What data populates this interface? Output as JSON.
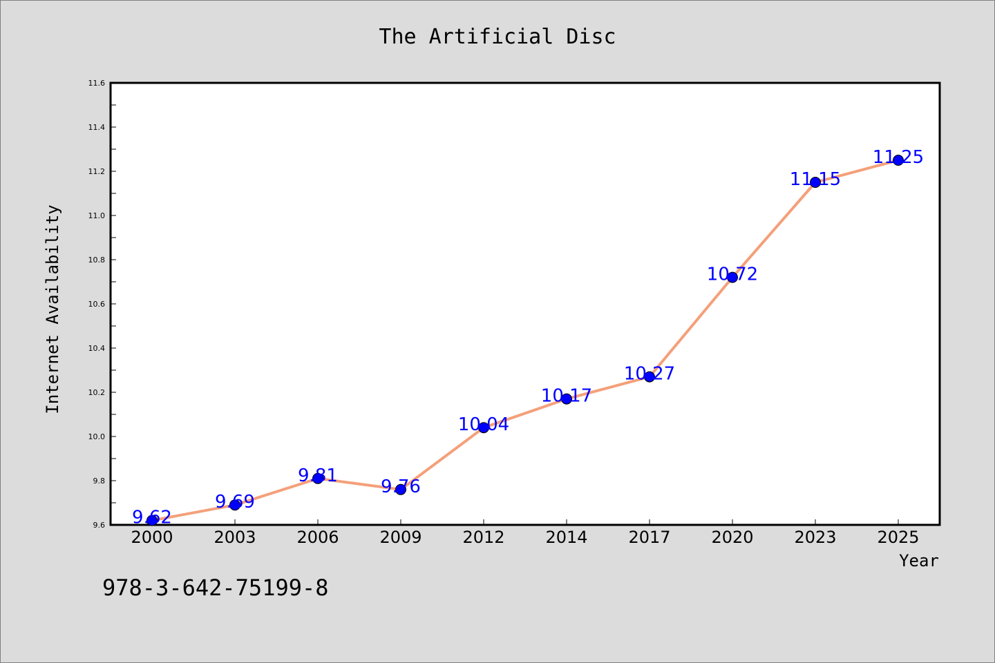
{
  "chart_data": {
    "type": "line",
    "title": "The Artificial Disc",
    "xlabel": "Year",
    "ylabel": "Internet Availability",
    "categories": [
      "2000",
      "2003",
      "2006",
      "2009",
      "2012",
      "2014",
      "2017",
      "2020",
      "2023",
      "2025"
    ],
    "series": [
      {
        "values": [
          9.62,
          9.69,
          9.81,
          9.76,
          10.04,
          10.17,
          10.27,
          10.72,
          11.15,
          11.25
        ]
      }
    ],
    "data_labels": [
      "9.62",
      "9.69",
      "9.81",
      "9.76",
      "10.04",
      "10.17",
      "10.27",
      "10.72",
      "11.15",
      "11.25"
    ],
    "ylim": [
      9.6,
      11.6
    ],
    "yticks": [
      "9.6",
      "9.8",
      "10.0",
      "10.2",
      "10.4",
      "10.6",
      "10.8",
      "11.0",
      "11.2",
      "11.4",
      "11.6"
    ],
    "grid": false,
    "legend": "none",
    "colors": {
      "line": "#f4a07a",
      "marker": "#0000ff",
      "label": "#0000ff",
      "plot_bg": "#ffffff",
      "page_bg": "#dcdcdc"
    }
  },
  "footer": {
    "isbn": "978-3-642-75199-8"
  }
}
